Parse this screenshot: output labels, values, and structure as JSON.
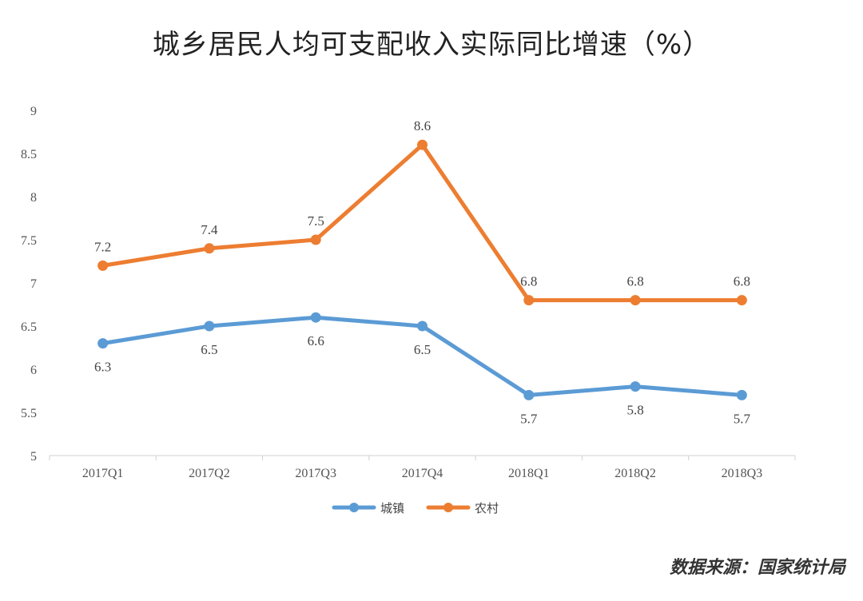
{
  "chart_data": {
    "type": "line",
    "title": "城乡居民人均可支配收入实际同比增速（%）",
    "categories": [
      "2017Q1",
      "2017Q2",
      "2017Q3",
      "2017Q4",
      "2018Q1",
      "2018Q2",
      "2018Q3"
    ],
    "y_ticks": [
      "5",
      "5.5",
      "6",
      "6.5",
      "7",
      "7.5",
      "8",
      "8.5",
      "9"
    ],
    "ylim": [
      5,
      9
    ],
    "grid": false,
    "legend_position": "bottom-center",
    "series": [
      {
        "name": "城镇",
        "color": "#5b9bd5",
        "label_position": "below",
        "values": [
          6.3,
          6.5,
          6.6,
          6.5,
          5.7,
          5.8,
          5.7
        ],
        "labels": [
          "6.3",
          "6.5",
          "6.6",
          "6.5",
          "5.7",
          "5.8",
          "5.7"
        ]
      },
      {
        "name": "农村",
        "color": "#ed7d31",
        "label_position": "above",
        "values": [
          7.2,
          7.4,
          7.5,
          8.6,
          6.8,
          6.8,
          6.8
        ],
        "labels": [
          "7.2",
          "7.4",
          "7.5",
          "8.6",
          "6.8",
          "6.8",
          "6.8"
        ]
      }
    ]
  },
  "source": "数据来源：国家统计局"
}
